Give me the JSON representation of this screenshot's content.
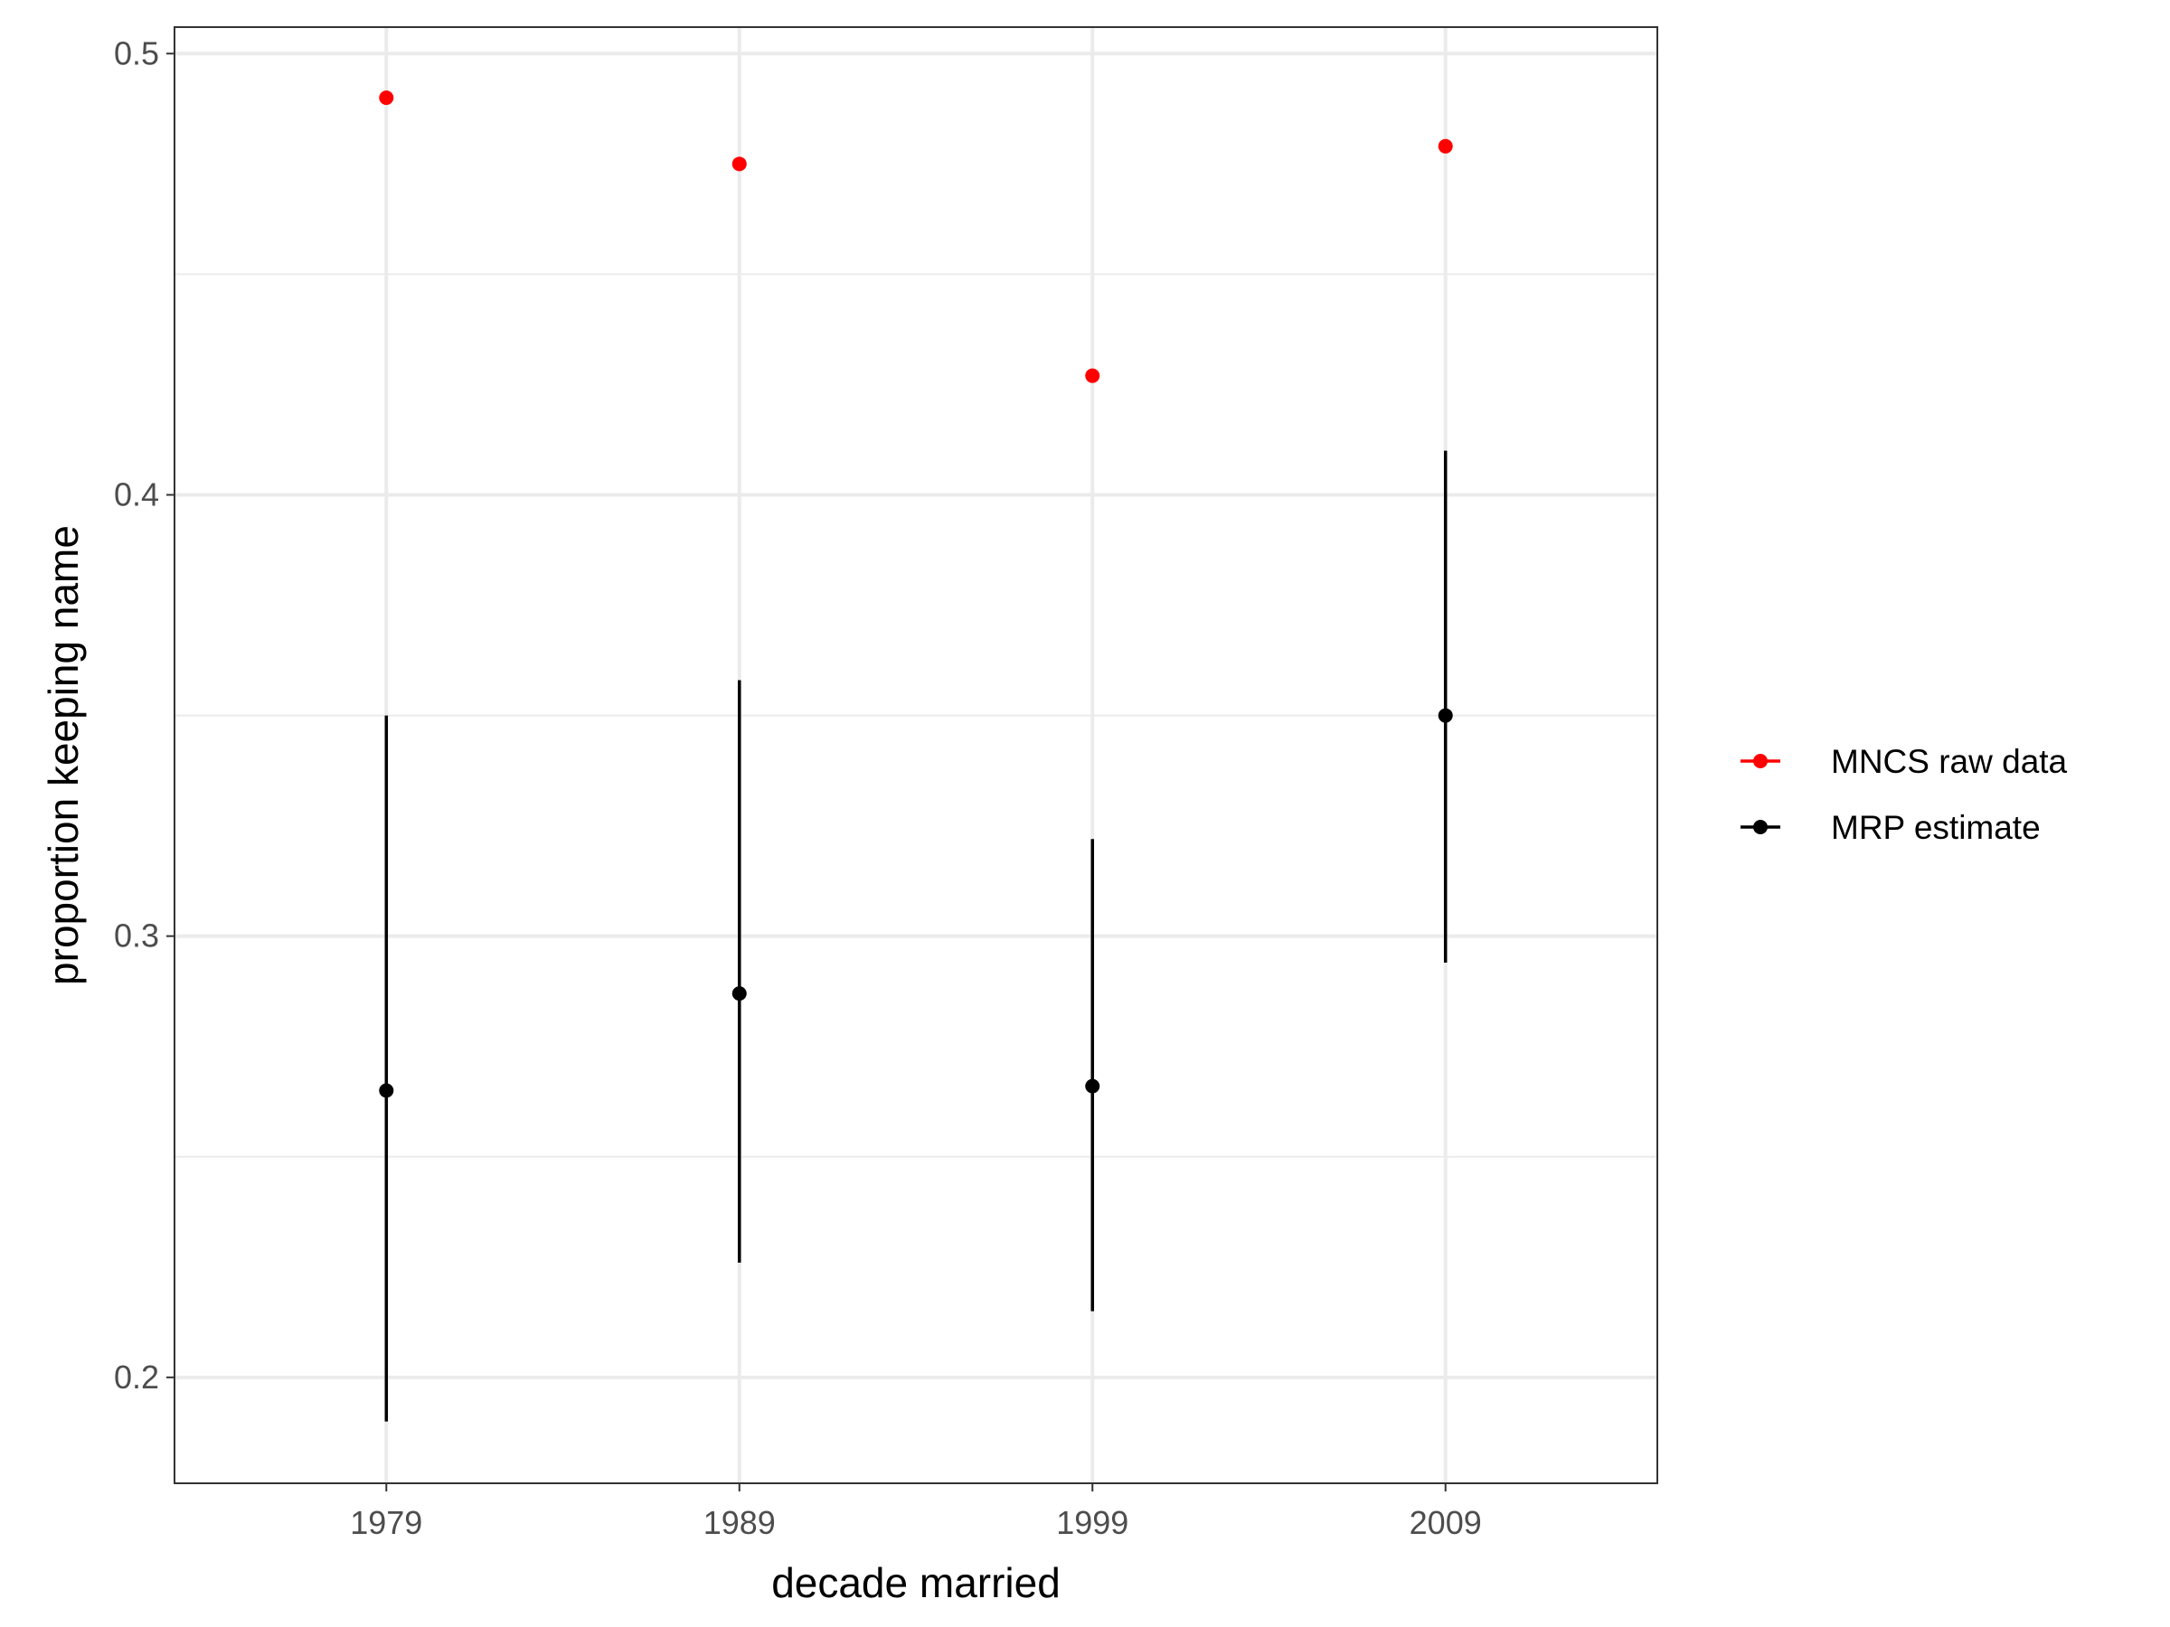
{
  "chart_data": {
    "type": "scatter",
    "title": "",
    "xlabel": "decade married",
    "ylabel": "proportion keeping name",
    "categories": [
      "1979",
      "1989",
      "1999",
      "2009"
    ],
    "ylim": [
      0.176,
      0.506
    ],
    "yticks": [
      0.2,
      0.3,
      0.4,
      0.5
    ],
    "ytick_labels": [
      "0.2",
      "0.3",
      "0.4",
      "0.5"
    ],
    "grid": true,
    "legend_position": "right",
    "series": [
      {
        "name": "MNCS raw data",
        "color": "#ff0000",
        "values": [
          0.49,
          0.475,
          0.427,
          0.479
        ]
      },
      {
        "name": "MRP estimate",
        "color": "#000000",
        "values": [
          0.265,
          0.287,
          0.266,
          0.35
        ],
        "lower": [
          0.19,
          0.226,
          0.215,
          0.294
        ],
        "upper": [
          0.35,
          0.358,
          0.322,
          0.41
        ]
      }
    ]
  }
}
